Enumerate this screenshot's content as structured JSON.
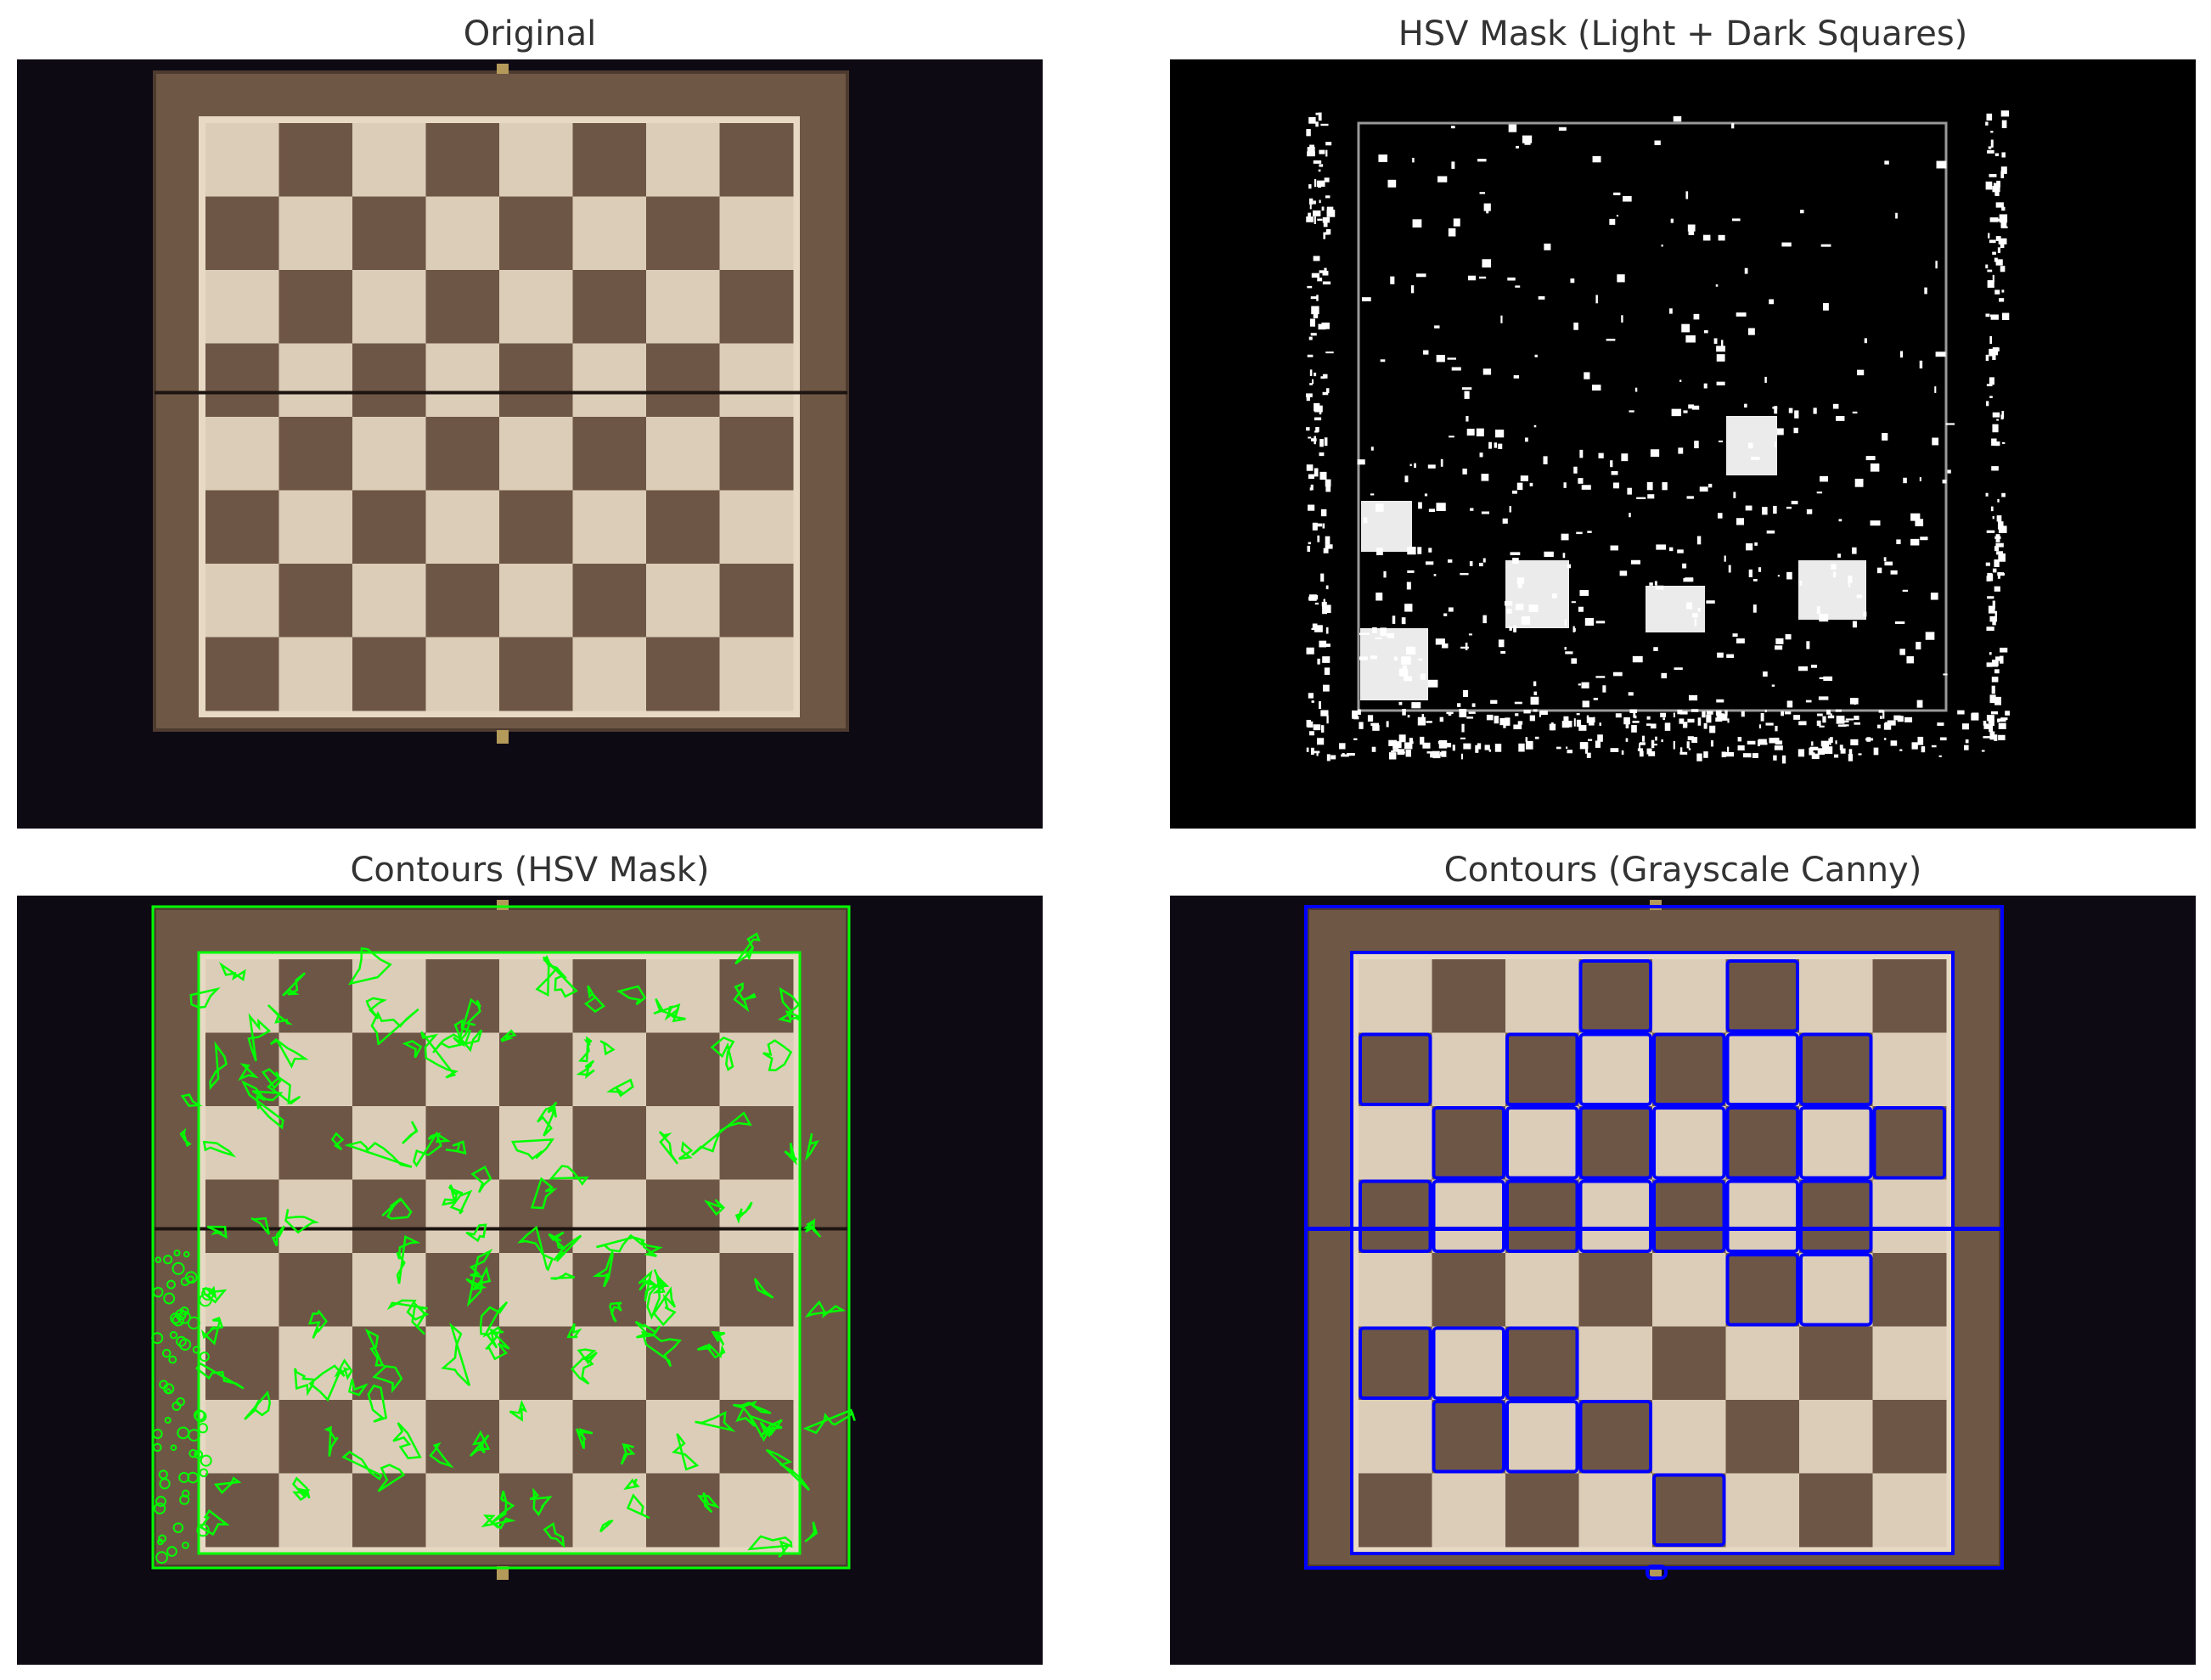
{
  "panels": [
    {
      "title": "Original"
    },
    {
      "title": "HSV Mask (Light + Dark Squares)"
    },
    {
      "title": "Contours (HSV Mask)"
    },
    {
      "title": "Contours (Grayscale Canny)"
    }
  ],
  "colors": {
    "background": "#0e0a14",
    "frame_wood": "#6f5746",
    "light_square": "#dccdb8",
    "dark_square": "#6e5646",
    "hsv_contour": "#00ff00",
    "canny_contour": "#0000ff",
    "mask_white": "#ffffff",
    "mask_black": "#000000"
  }
}
